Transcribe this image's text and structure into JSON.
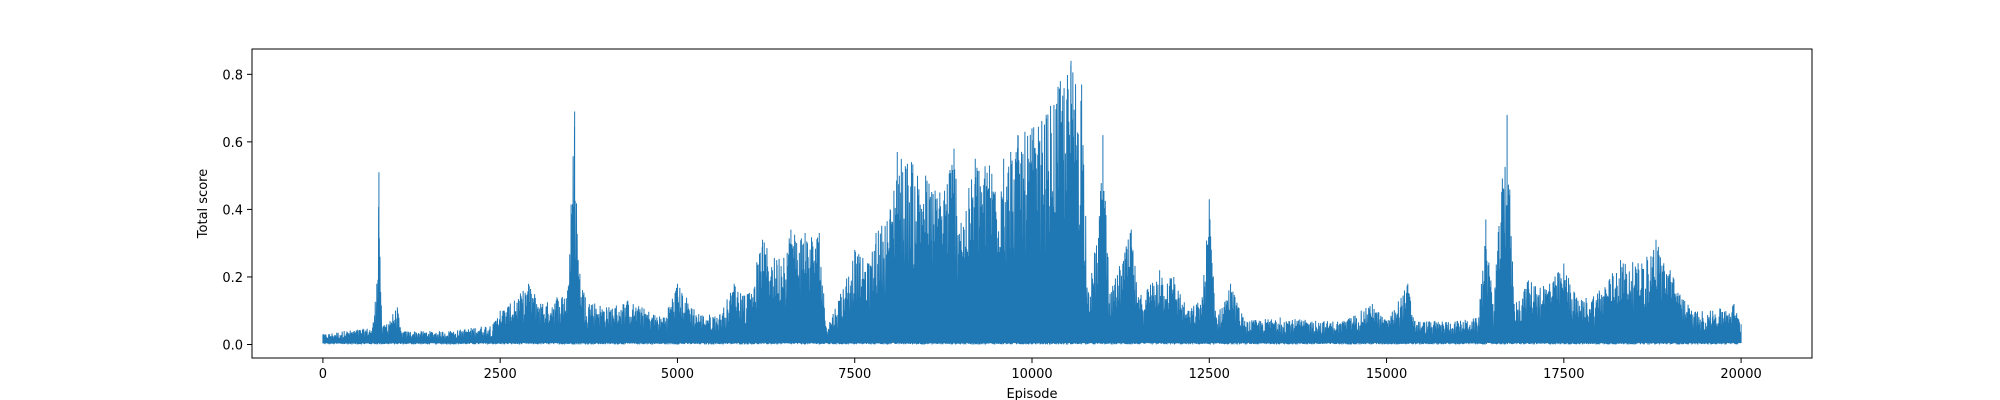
{
  "chart_data": {
    "type": "line",
    "title": "",
    "xlabel": "Episode",
    "ylabel": "Total score",
    "xlim": [
      -1000,
      21000
    ],
    "ylim": [
      -0.04,
      0.875
    ],
    "xticks": [
      0,
      2500,
      5000,
      7500,
      10000,
      12500,
      15000,
      17500,
      20000
    ],
    "xtick_labels": [
      "0",
      "2500",
      "5000",
      "7500",
      "10000",
      "12500",
      "15000",
      "17500",
      "20000"
    ],
    "yticks": [
      0.0,
      0.2,
      0.4,
      0.6,
      0.8
    ],
    "ytick_labels": [
      "0.0",
      "0.2",
      "0.4",
      "0.6",
      "0.8"
    ],
    "grid": false,
    "legend": "none",
    "series": [
      {
        "color": "#1f77b4",
        "x_range": [
          0,
          20000
        ],
        "envelope": [
          [
            0,
            0.03
          ],
          [
            300,
            0.04
          ],
          [
            700,
            0.05
          ],
          [
            760,
            0.18
          ],
          [
            790,
            0.51
          ],
          [
            830,
            0.05
          ],
          [
            1050,
            0.11
          ],
          [
            1100,
            0.04
          ],
          [
            1800,
            0.04
          ],
          [
            2400,
            0.06
          ],
          [
            2500,
            0.1
          ],
          [
            2700,
            0.13
          ],
          [
            2900,
            0.18
          ],
          [
            3100,
            0.12
          ],
          [
            3300,
            0.14
          ],
          [
            3450,
            0.16
          ],
          [
            3550,
            0.69
          ],
          [
            3600,
            0.25
          ],
          [
            3700,
            0.14
          ],
          [
            4000,
            0.11
          ],
          [
            4300,
            0.13
          ],
          [
            4500,
            0.11
          ],
          [
            4800,
            0.08
          ],
          [
            5000,
            0.18
          ],
          [
            5300,
            0.09
          ],
          [
            5600,
            0.09
          ],
          [
            5800,
            0.18
          ],
          [
            6000,
            0.15
          ],
          [
            6200,
            0.31
          ],
          [
            6400,
            0.25
          ],
          [
            6600,
            0.34
          ],
          [
            6800,
            0.33
          ],
          [
            7000,
            0.33
          ],
          [
            7100,
            0.05
          ],
          [
            7300,
            0.15
          ],
          [
            7500,
            0.28
          ],
          [
            7700,
            0.24
          ],
          [
            7800,
            0.33
          ],
          [
            8000,
            0.4
          ],
          [
            8100,
            0.57
          ],
          [
            8300,
            0.54
          ],
          [
            8500,
            0.5
          ],
          [
            8700,
            0.45
          ],
          [
            8900,
            0.58
          ],
          [
            9000,
            0.36
          ],
          [
            9200,
            0.55
          ],
          [
            9400,
            0.53
          ],
          [
            9600,
            0.55
          ],
          [
            9700,
            0.57
          ],
          [
            9800,
            0.62
          ],
          [
            9900,
            0.63
          ],
          [
            10000,
            0.64
          ],
          [
            10200,
            0.68
          ],
          [
            10400,
            0.78
          ],
          [
            10550,
            0.84
          ],
          [
            10700,
            0.77
          ],
          [
            10800,
            0.15
          ],
          [
            10950,
            0.38
          ],
          [
            11000,
            0.62
          ],
          [
            11100,
            0.15
          ],
          [
            11400,
            0.34
          ],
          [
            11500,
            0.14
          ],
          [
            11800,
            0.22
          ],
          [
            12000,
            0.2
          ],
          [
            12200,
            0.1
          ],
          [
            12400,
            0.14
          ],
          [
            12500,
            0.43
          ],
          [
            12600,
            0.08
          ],
          [
            12800,
            0.18
          ],
          [
            13000,
            0.07
          ],
          [
            13500,
            0.08
          ],
          [
            14000,
            0.07
          ],
          [
            14400,
            0.07
          ],
          [
            14800,
            0.12
          ],
          [
            15000,
            0.07
          ],
          [
            15300,
            0.18
          ],
          [
            15400,
            0.07
          ],
          [
            16000,
            0.07
          ],
          [
            16300,
            0.08
          ],
          [
            16400,
            0.37
          ],
          [
            16500,
            0.12
          ],
          [
            16700,
            0.68
          ],
          [
            16800,
            0.12
          ],
          [
            17000,
            0.19
          ],
          [
            17300,
            0.18
          ],
          [
            17500,
            0.24
          ],
          [
            17700,
            0.13
          ],
          [
            18000,
            0.16
          ],
          [
            18300,
            0.25
          ],
          [
            18600,
            0.24
          ],
          [
            18800,
            0.31
          ],
          [
            19000,
            0.22
          ],
          [
            19300,
            0.1
          ],
          [
            19600,
            0.1
          ],
          [
            19900,
            0.12
          ],
          [
            20000,
            0.06
          ]
        ],
        "baseline": 0.005
      }
    ]
  }
}
